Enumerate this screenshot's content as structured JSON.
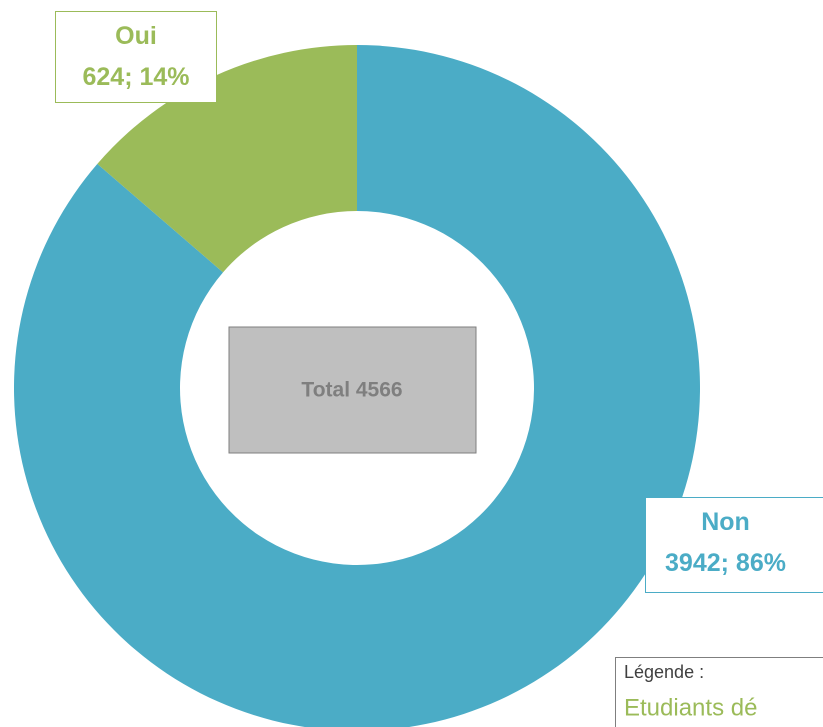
{
  "chart_data": {
    "type": "donut",
    "categories": [
      "Oui",
      "Non"
    ],
    "values": [
      624,
      3942
    ],
    "value_labels": [
      "624; 14%",
      "3942; 86%"
    ],
    "colors": [
      "#9bbb59",
      "#4bacc6"
    ],
    "center_label": "Total 4566",
    "legend_title": "Légende :",
    "legend_text": "Etudiants dé"
  }
}
